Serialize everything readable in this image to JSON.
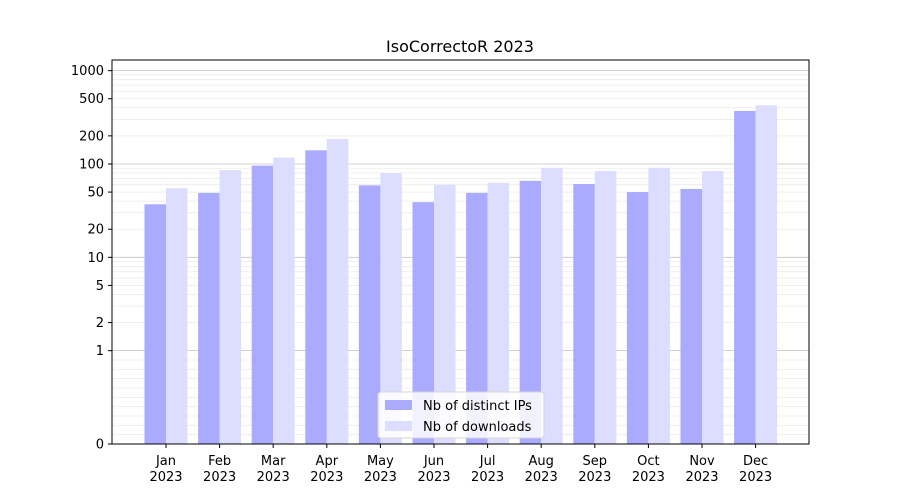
{
  "chart_data": {
    "type": "bar",
    "title": "IsoCorrectoR 2023",
    "xlabel": "",
    "ylabel": "",
    "categories": [
      "Jan\n2023",
      "Feb\n2023",
      "Mar\n2023",
      "Apr\n2023",
      "May\n2023",
      "Jun\n2023",
      "Jul\n2023",
      "Aug\n2023",
      "Sep\n2023",
      "Oct\n2023",
      "Nov\n2023",
      "Dec\n2023"
    ],
    "category_lines": [
      [
        "Jan",
        "2023"
      ],
      [
        "Feb",
        "2023"
      ],
      [
        "Mar",
        "2023"
      ],
      [
        "Apr",
        "2023"
      ],
      [
        "May",
        "2023"
      ],
      [
        "Jun",
        "2023"
      ],
      [
        "Jul",
        "2023"
      ],
      [
        "Aug",
        "2023"
      ],
      [
        "Sep",
        "2023"
      ],
      [
        "Oct",
        "2023"
      ],
      [
        "Nov",
        "2023"
      ],
      [
        "Dec",
        "2023"
      ]
    ],
    "series": [
      {
        "name": "Nb of distinct IPs",
        "color": "#aaaaff",
        "values": [
          37,
          49,
          96,
          140,
          59,
          39,
          49,
          66,
          61,
          50,
          54,
          370
        ]
      },
      {
        "name": "Nb of downloads",
        "color": "#ddddff",
        "values": [
          55,
          86,
          117,
          185,
          80,
          60,
          63,
          91,
          84,
          91,
          84,
          425
        ]
      }
    ],
    "yscale": "symlog",
    "ylim": [
      0,
      1300
    ],
    "yticks": [
      0,
      1,
      2,
      5,
      10,
      20,
      50,
      100,
      200,
      500,
      1000
    ],
    "ytick_labels": [
      "0",
      "1",
      "2",
      "5",
      "10",
      "20",
      "50",
      "100",
      "200",
      "500",
      "1000"
    ],
    "grid": true,
    "legend_position": "bottom-center"
  }
}
